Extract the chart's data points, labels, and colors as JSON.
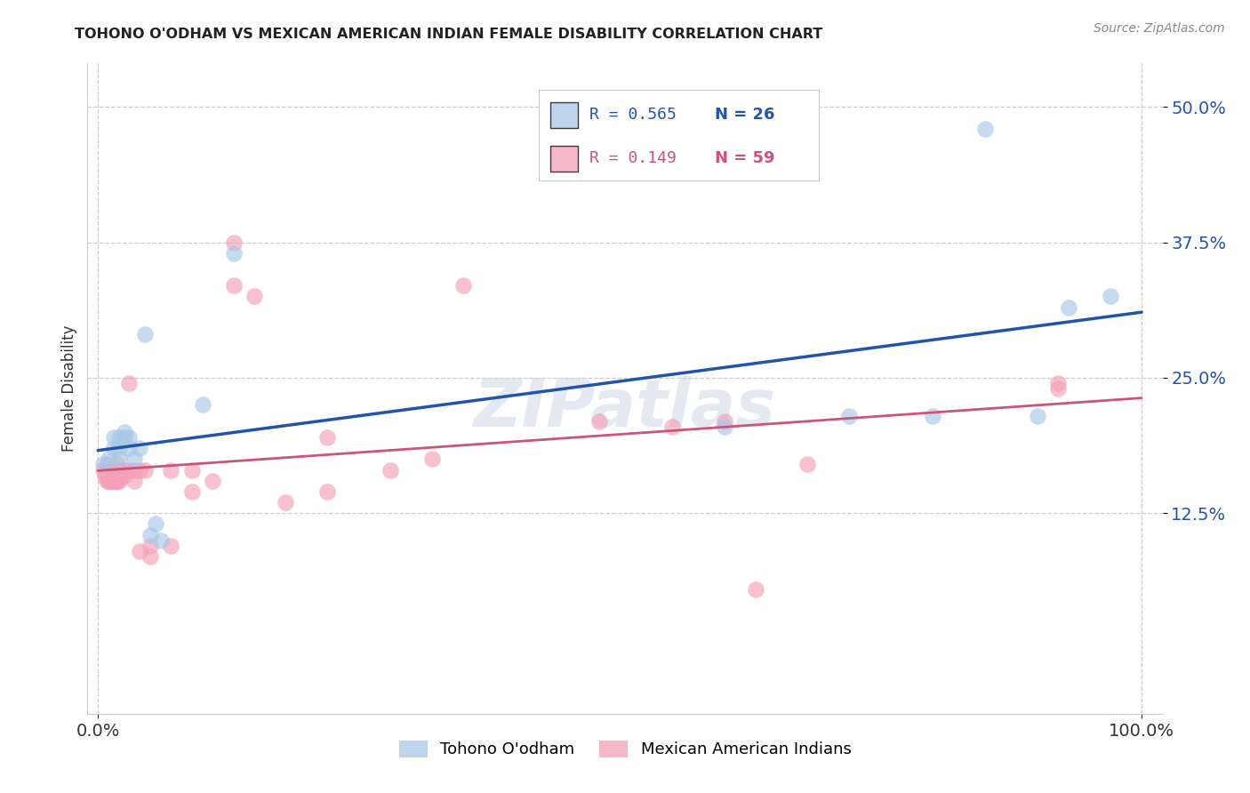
{
  "title": "TOHONO O'ODHAM VS MEXICAN AMERICAN INDIAN FEMALE DISABILITY CORRELATION CHART",
  "source": "Source: ZipAtlas.com",
  "ylabel": "Female Disability",
  "xlim": [
    -0.01,
    1.02
  ],
  "ylim": [
    -0.06,
    0.54
  ],
  "yticks": [
    0.125,
    0.25,
    0.375,
    0.5
  ],
  "xticks": [
    0.0,
    1.0
  ],
  "legend_r_blue": "R = 0.565",
  "legend_n_blue": "N = 26",
  "legend_r_pink": "R = 0.149",
  "legend_n_pink": "N = 59",
  "blue_color": "#a8c8e8",
  "pink_color": "#f4a0b8",
  "blue_line_color": "#2255aa",
  "pink_line_color": "#cc5577",
  "watermark": "ZIPatlas",
  "blue_x": [
    0.005,
    0.01,
    0.015,
    0.015,
    0.02,
    0.02,
    0.02,
    0.025,
    0.025,
    0.03,
    0.03,
    0.035,
    0.04,
    0.045,
    0.05,
    0.055,
    0.06,
    0.1,
    0.13,
    0.6,
    0.72,
    0.8,
    0.85,
    0.9,
    0.93,
    0.97
  ],
  "blue_y": [
    0.17,
    0.175,
    0.185,
    0.195,
    0.175,
    0.185,
    0.195,
    0.195,
    0.2,
    0.185,
    0.195,
    0.175,
    0.185,
    0.29,
    0.105,
    0.115,
    0.1,
    0.225,
    0.365,
    0.205,
    0.215,
    0.215,
    0.48,
    0.215,
    0.315,
    0.325
  ],
  "pink_x": [
    0.005,
    0.007,
    0.008,
    0.008,
    0.009,
    0.01,
    0.01,
    0.01,
    0.012,
    0.012,
    0.013,
    0.013,
    0.014,
    0.015,
    0.015,
    0.015,
    0.016,
    0.016,
    0.017,
    0.017,
    0.018,
    0.018,
    0.019,
    0.019,
    0.02,
    0.02,
    0.02,
    0.025,
    0.025,
    0.03,
    0.03,
    0.035,
    0.035,
    0.04,
    0.04,
    0.045,
    0.05,
    0.05,
    0.07,
    0.07,
    0.09,
    0.09,
    0.11,
    0.13,
    0.13,
    0.15,
    0.18,
    0.22,
    0.22,
    0.28,
    0.32,
    0.35,
    0.48,
    0.55,
    0.6,
    0.63,
    0.68,
    0.92,
    0.92
  ],
  "pink_y": [
    0.165,
    0.16,
    0.155,
    0.165,
    0.17,
    0.155,
    0.16,
    0.165,
    0.155,
    0.165,
    0.155,
    0.165,
    0.155,
    0.155,
    0.16,
    0.165,
    0.155,
    0.16,
    0.155,
    0.165,
    0.155,
    0.16,
    0.155,
    0.17,
    0.155,
    0.16,
    0.165,
    0.16,
    0.165,
    0.165,
    0.245,
    0.155,
    0.165,
    0.09,
    0.165,
    0.165,
    0.085,
    0.095,
    0.165,
    0.095,
    0.165,
    0.145,
    0.155,
    0.375,
    0.335,
    0.325,
    0.135,
    0.195,
    0.145,
    0.165,
    0.175,
    0.335,
    0.21,
    0.205,
    0.21,
    0.055,
    0.17,
    0.245,
    0.24
  ]
}
